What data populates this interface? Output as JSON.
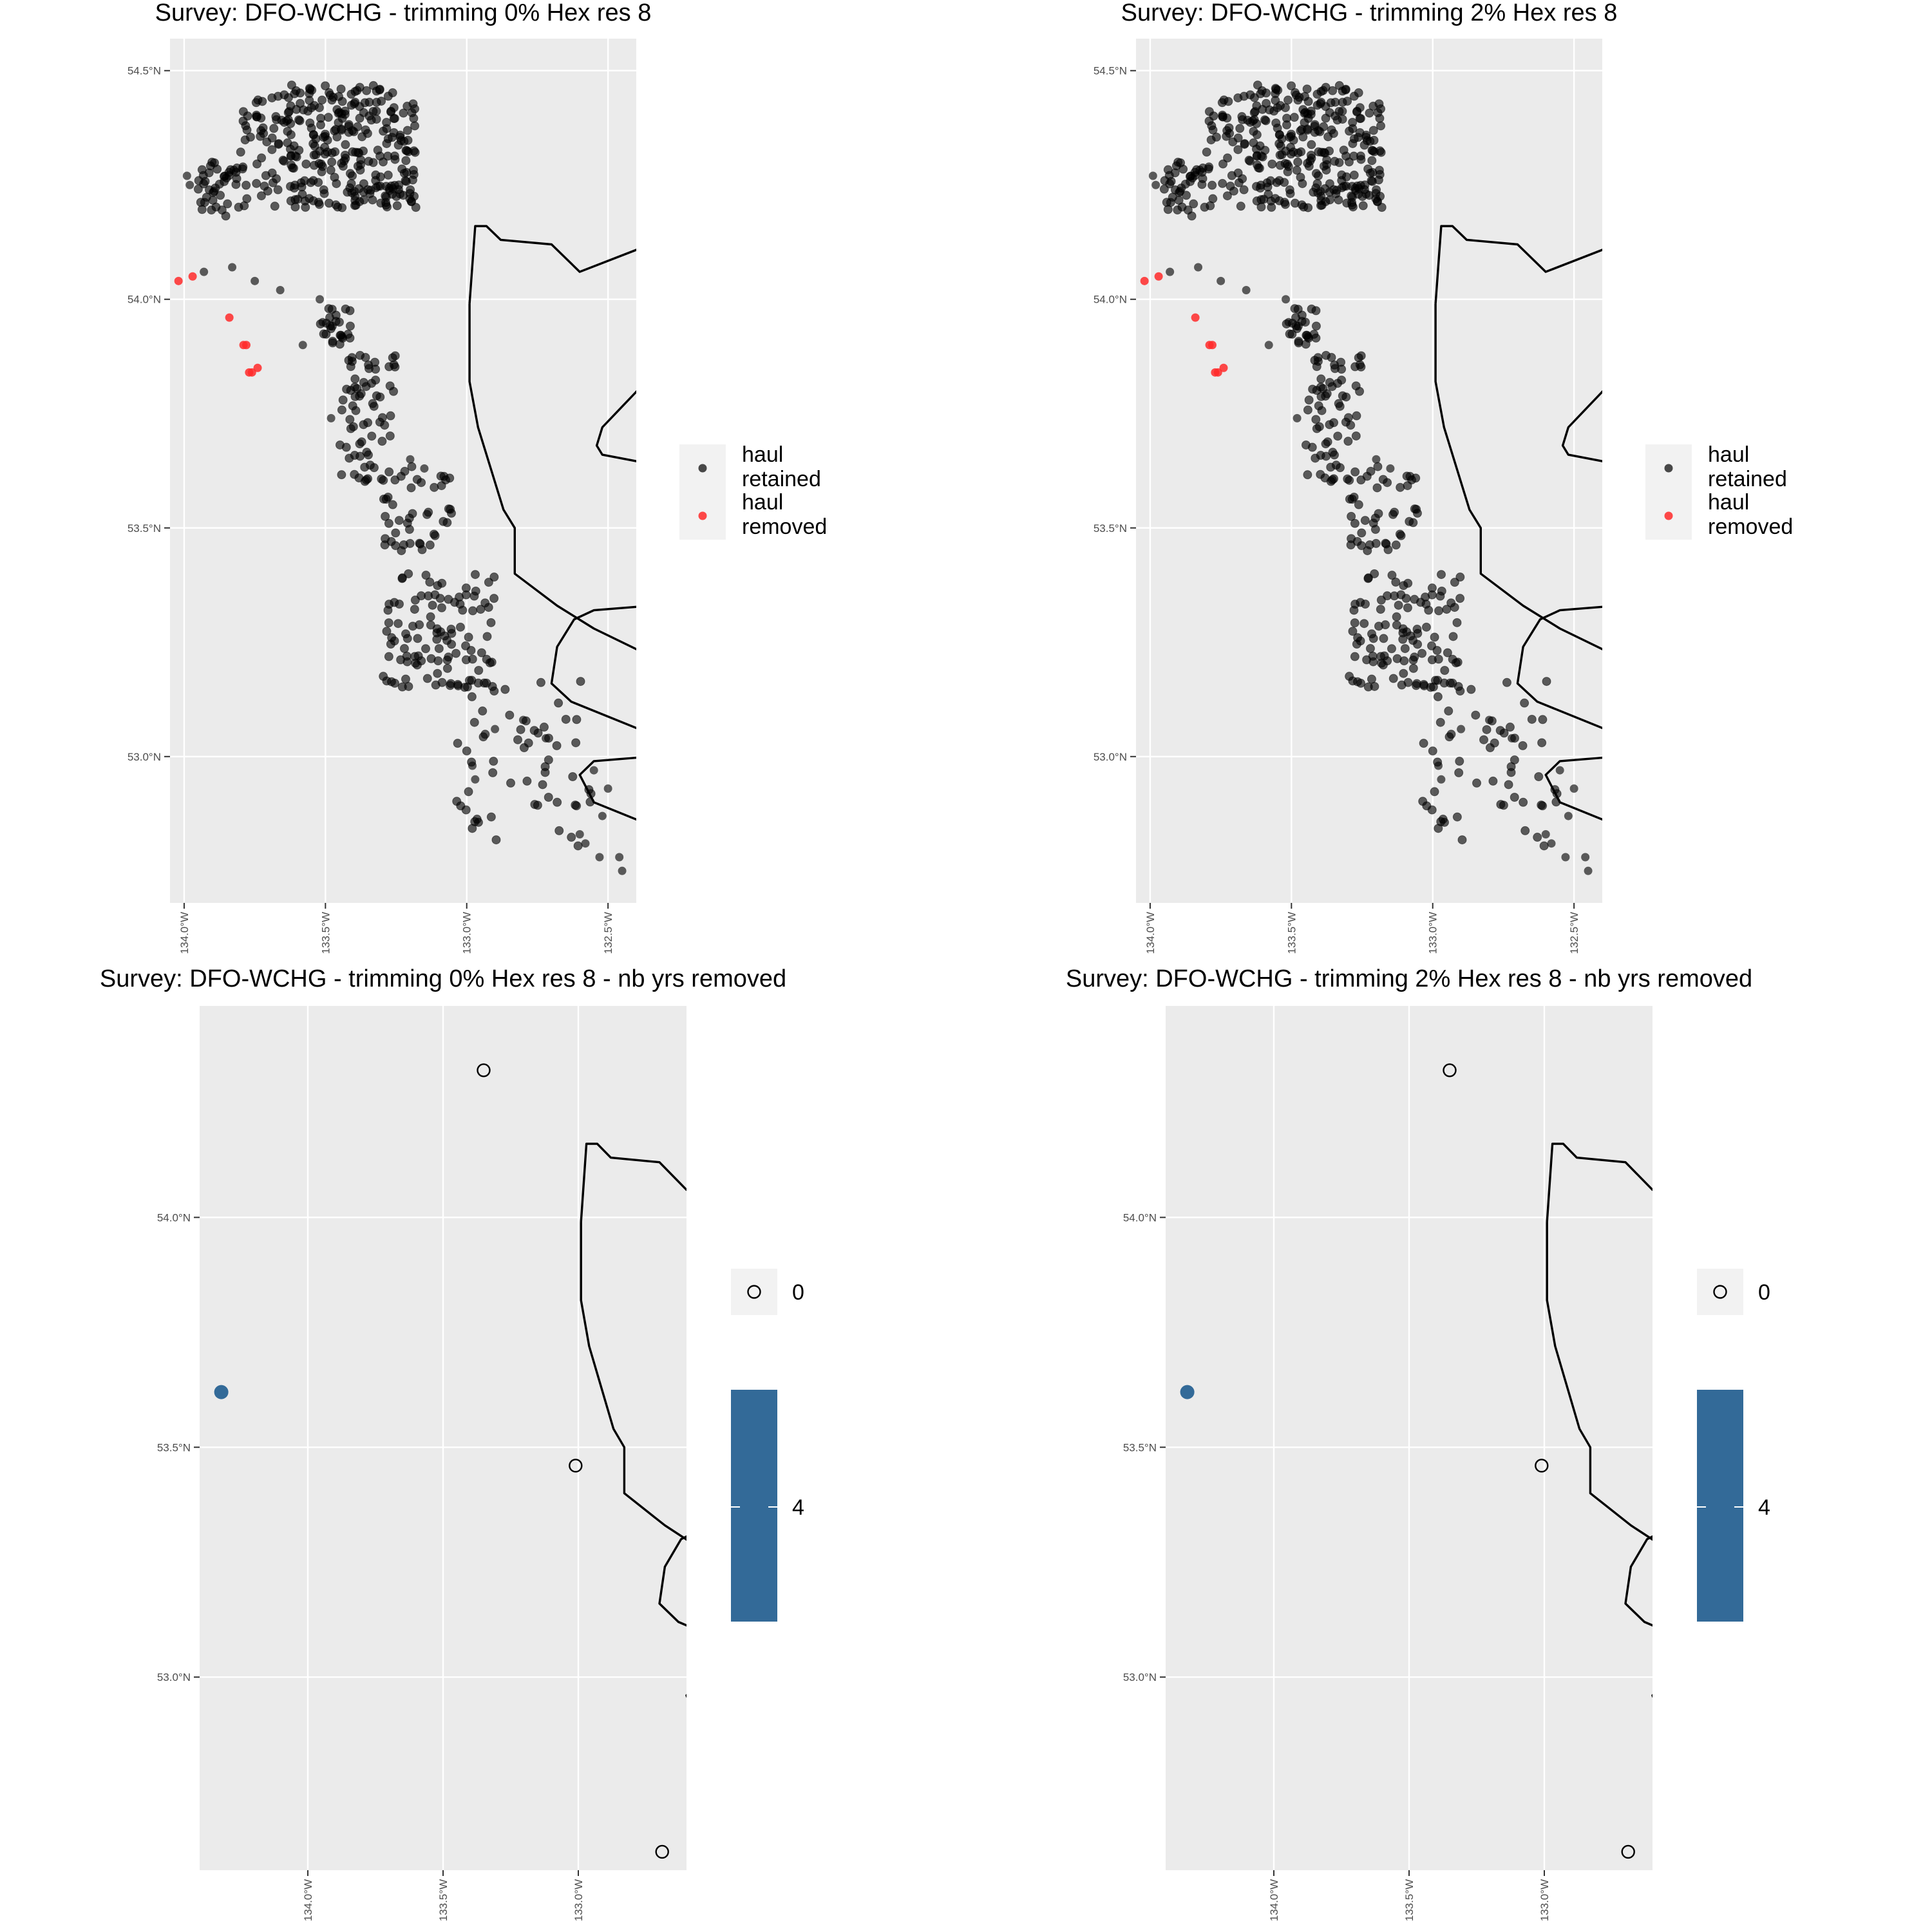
{
  "chart_data": [
    {
      "type": "map-scatter",
      "title": "Survey: DFO-WCHG - trimming 0% Hex res 8",
      "xlim": [
        -134.05,
        -132.4
      ],
      "ylim": [
        52.68,
        54.57
      ],
      "xticks": [
        -134.0,
        -133.5,
        -133.0,
        -132.5
      ],
      "xtick_labels": [
        "134.0°W",
        "133.5°W",
        "133.0°W",
        "132.5°W"
      ],
      "yticks": [
        53.0,
        53.5,
        54.0,
        54.5
      ],
      "ytick_labels": [
        "53.0°N",
        "53.5°N",
        "54.0°N",
        "54.5°N"
      ],
      "legend": {
        "position": "right",
        "items": [
          "haul\nretained",
          "haul\nremoved"
        ],
        "colors": [
          "#000000",
          "#ff2a2a"
        ]
      },
      "series": [
        {
          "name": "haul\nretained",
          "color": "#000000",
          "clusters": [
            {
              "x": [
                -133.8,
                -133.18
              ],
              "y": [
                54.2,
                54.47
              ],
              "n": 320
            },
            {
              "x": [
                -133.95,
                -133.8
              ],
              "y": [
                54.18,
                54.3
              ],
              "n": 40
            },
            {
              "x": [
                -133.52,
                -133.4
              ],
              "y": [
                53.9,
                53.98
              ],
              "n": 25
            },
            {
              "x": [
                -133.45,
                -133.25
              ],
              "y": [
                53.6,
                53.88
              ],
              "n": 70
            },
            {
              "x": [
                -133.3,
                -133.05
              ],
              "y": [
                53.45,
                53.65
              ],
              "n": 45
            },
            {
              "x": [
                -133.3,
                -132.9
              ],
              "y": [
                53.15,
                53.4
              ],
              "n": 110
            },
            {
              "x": [
                -133.05,
                -132.55
              ],
              "y": [
                52.8,
                53.2
              ],
              "n": 60
            }
          ],
          "points": [
            [
              -133.99,
              54.27
            ],
            [
              -133.98,
              54.25
            ],
            [
              -133.93,
              54.06
            ],
            [
              -133.83,
              54.07
            ],
            [
              -133.75,
              54.04
            ],
            [
              -133.66,
              54.02
            ],
            [
              -133.52,
              54.0
            ],
            [
              -133.51,
              53.95
            ],
            [
              -133.58,
              53.9
            ],
            [
              -133.48,
              53.74
            ],
            [
              -133.2,
              53.65
            ],
            [
              -133.15,
              53.63
            ],
            [
              -132.8,
              53.08
            ],
            [
              -132.72,
              53.04
            ],
            [
              -132.55,
              52.97
            ],
            [
              -132.5,
              52.93
            ],
            [
              -132.52,
              52.87
            ],
            [
              -132.6,
              52.83
            ],
            [
              -132.53,
              52.78
            ],
            [
              -132.46,
              52.78
            ],
            [
              -132.45,
              52.75
            ],
            [
              -132.58,
              52.81
            ],
            [
              -132.9,
              53.06
            ],
            [
              -132.98,
              52.98
            ],
            [
              -132.97,
              52.95
            ]
          ]
        },
        {
          "name": "haul\nremoved",
          "color": "#ff2a2a",
          "points": [
            [
              -134.02,
              54.04
            ],
            [
              -133.97,
              54.05
            ],
            [
              -133.84,
              53.96
            ],
            [
              -133.79,
              53.9
            ],
            [
              -133.78,
              53.9
            ],
            [
              -133.77,
              53.84
            ],
            [
              -133.76,
              53.84
            ],
            [
              -133.74,
              53.85
            ]
          ]
        }
      ]
    },
    {
      "type": "map-scatter",
      "title": "Survey: DFO-WCHG - trimming 2% Hex res 8",
      "xlim": [
        -134.05,
        -132.4
      ],
      "ylim": [
        52.68,
        54.57
      ],
      "xticks": [
        -134.0,
        -133.5,
        -133.0,
        -132.5
      ],
      "xtick_labels": [
        "134.0°W",
        "133.5°W",
        "133.0°W",
        "132.5°W"
      ],
      "yticks": [
        53.0,
        53.5,
        54.0,
        54.5
      ],
      "ytick_labels": [
        "53.0°N",
        "53.5°N",
        "54.0°N",
        "54.5°N"
      ],
      "legend": {
        "position": "right",
        "items": [
          "haul\nretained",
          "haul\nremoved"
        ],
        "colors": [
          "#000000",
          "#ff2a2a"
        ]
      },
      "series": [
        {
          "name": "haul\nretained",
          "color": "#000000",
          "clusters": [
            {
              "x": [
                -133.8,
                -133.18
              ],
              "y": [
                54.2,
                54.47
              ],
              "n": 320
            },
            {
              "x": [
                -133.95,
                -133.8
              ],
              "y": [
                54.18,
                54.3
              ],
              "n": 40
            },
            {
              "x": [
                -133.52,
                -133.4
              ],
              "y": [
                53.9,
                53.98
              ],
              "n": 25
            },
            {
              "x": [
                -133.45,
                -133.25
              ],
              "y": [
                53.6,
                53.88
              ],
              "n": 70
            },
            {
              "x": [
                -133.3,
                -133.05
              ],
              "y": [
                53.45,
                53.65
              ],
              "n": 45
            },
            {
              "x": [
                -133.3,
                -132.9
              ],
              "y": [
                53.15,
                53.4
              ],
              "n": 110
            },
            {
              "x": [
                -133.05,
                -132.55
              ],
              "y": [
                52.8,
                53.2
              ],
              "n": 60
            }
          ],
          "points": [
            [
              -133.99,
              54.27
            ],
            [
              -133.98,
              54.25
            ],
            [
              -133.93,
              54.06
            ],
            [
              -133.83,
              54.07
            ],
            [
              -133.75,
              54.04
            ],
            [
              -133.66,
              54.02
            ],
            [
              -133.52,
              54.0
            ],
            [
              -133.51,
              53.95
            ],
            [
              -133.58,
              53.9
            ],
            [
              -133.48,
              53.74
            ],
            [
              -133.2,
              53.65
            ],
            [
              -133.15,
              53.63
            ],
            [
              -132.8,
              53.08
            ],
            [
              -132.72,
              53.04
            ],
            [
              -132.55,
              52.97
            ],
            [
              -132.5,
              52.93
            ],
            [
              -132.52,
              52.87
            ],
            [
              -132.6,
              52.83
            ],
            [
              -132.53,
              52.78
            ],
            [
              -132.46,
              52.78
            ],
            [
              -132.45,
              52.75
            ],
            [
              -132.58,
              52.81
            ],
            [
              -132.9,
              53.06
            ],
            [
              -132.98,
              52.98
            ],
            [
              -132.97,
              52.95
            ]
          ]
        },
        {
          "name": "haul\nremoved",
          "color": "#ff2a2a",
          "points": [
            [
              -134.02,
              54.04
            ],
            [
              -133.97,
              54.05
            ],
            [
              -133.84,
              53.96
            ],
            [
              -133.79,
              53.9
            ],
            [
              -133.78,
              53.9
            ],
            [
              -133.77,
              53.84
            ],
            [
              -133.76,
              53.84
            ],
            [
              -133.74,
              53.85
            ]
          ]
        }
      ]
    },
    {
      "type": "map-scatter",
      "title": "Survey: DFO-WCHG - trimming 0% Hex res 8 - nb yrs removed",
      "xlim": [
        -134.4,
        -132.6
      ],
      "ylim": [
        52.58,
        54.46
      ],
      "xticks": [
        -134.0,
        -133.5,
        -133.0
      ],
      "xtick_labels": [
        "134.0°W",
        "133.5°W",
        "133.0°W"
      ],
      "yticks": [
        53.0,
        53.5,
        54.0
      ],
      "ytick_labels": [
        "53.0°N",
        "53.5°N",
        "54.0°N"
      ],
      "legend": {
        "position": "right",
        "shape_key": "0",
        "colorbar_label": "4",
        "colorbar_color": "#336a98"
      },
      "points": [
        {
          "x": -133.35,
          "y": 54.32,
          "value": 0
        },
        {
          "x": -133.01,
          "y": 53.46,
          "value": 0
        },
        {
          "x": -132.69,
          "y": 52.62,
          "value": 0
        },
        {
          "x": -134.32,
          "y": 53.62,
          "value": 4
        }
      ]
    },
    {
      "type": "map-scatter",
      "title": "Survey: DFO-WCHG - trimming 2% Hex res 8 - nb yrs removed",
      "xlim": [
        -134.4,
        -132.6
      ],
      "ylim": [
        52.58,
        54.46
      ],
      "xticks": [
        -134.0,
        -133.5,
        -133.0
      ],
      "xtick_labels": [
        "134.0°W",
        "133.5°W",
        "133.0°W"
      ],
      "yticks": [
        53.0,
        53.5,
        54.0
      ],
      "ytick_labels": [
        "53.0°N",
        "53.5°N",
        "54.0°N"
      ],
      "legend": {
        "position": "right",
        "shape_key": "0",
        "colorbar_label": "4",
        "colorbar_color": "#336a98"
      },
      "points": [
        {
          "x": -133.35,
          "y": 54.32,
          "value": 0
        },
        {
          "x": -133.01,
          "y": 53.46,
          "value": 0
        },
        {
          "x": -132.69,
          "y": 52.62,
          "value": 0
        },
        {
          "x": -134.32,
          "y": 53.62,
          "value": 4
        }
      ]
    }
  ],
  "coastline": [
    [
      [
        -132.99,
        53.99
      ],
      [
        -132.97,
        54.16
      ],
      [
        -132.93,
        54.16
      ],
      [
        -132.88,
        54.13
      ],
      [
        -132.7,
        54.12
      ],
      [
        -132.6,
        54.06
      ],
      [
        -132.35,
        54.12
      ]
    ],
    [
      [
        -132.99,
        53.99
      ],
      [
        -132.99,
        53.82
      ],
      [
        -132.96,
        53.72
      ],
      [
        -132.87,
        53.54
      ],
      [
        -132.83,
        53.5
      ],
      [
        -132.83,
        53.4
      ],
      [
        -132.68,
        53.33
      ],
      [
        -132.55,
        53.28
      ],
      [
        -132.35,
        53.22
      ]
    ],
    [
      [
        -132.35,
        53.83
      ],
      [
        -132.52,
        53.72
      ],
      [
        -132.54,
        53.68
      ],
      [
        -132.52,
        53.66
      ],
      [
        -132.35,
        53.64
      ]
    ],
    [
      [
        -132.35,
        53.33
      ],
      [
        -132.55,
        53.32
      ],
      [
        -132.62,
        53.3
      ],
      [
        -132.68,
        53.24
      ],
      [
        -132.7,
        53.16
      ],
      [
        -132.63,
        53.12
      ],
      [
        -132.35,
        53.05
      ]
    ],
    [
      [
        -132.35,
        53.0
      ],
      [
        -132.55,
        52.99
      ],
      [
        -132.6,
        52.96
      ],
      [
        -132.55,
        52.9
      ],
      [
        -132.35,
        52.85
      ]
    ]
  ]
}
